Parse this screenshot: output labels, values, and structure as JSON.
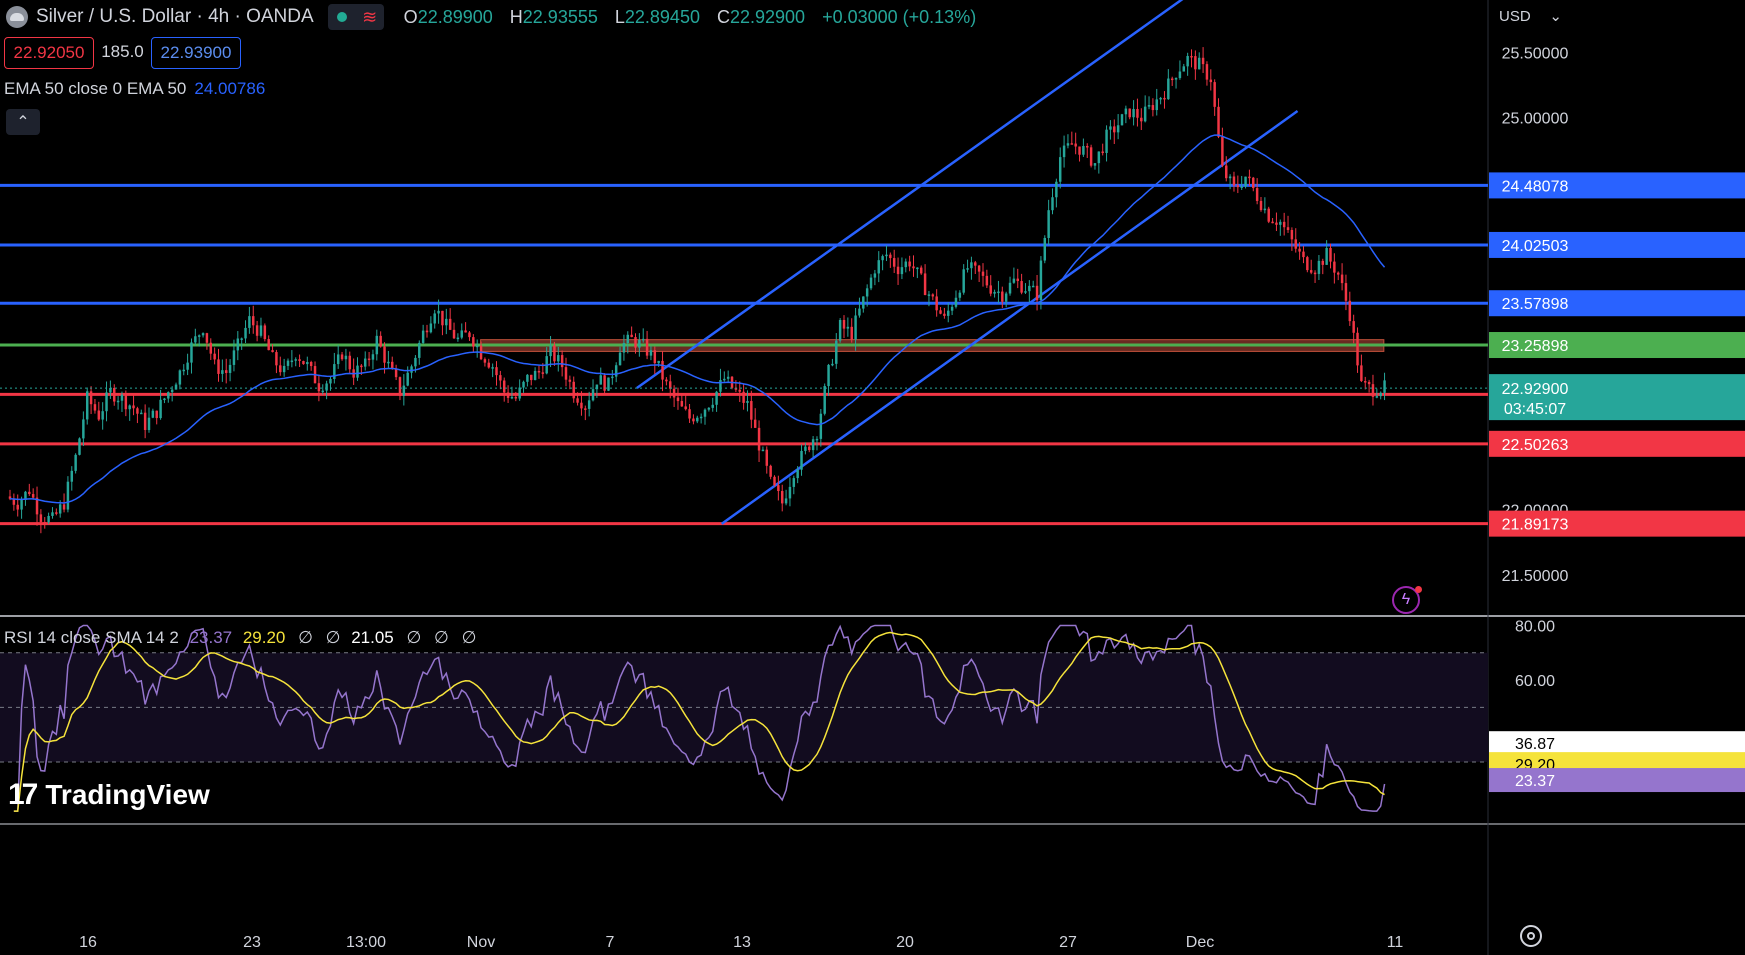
{
  "header": {
    "title": "Silver / U.S. Dollar · 4h · OANDA",
    "ohlc": {
      "o_label": "O",
      "o": "22.89900",
      "h_label": "H",
      "h": "22.93555",
      "l_label": "L",
      "l": "22.89450",
      "c_label": "C",
      "c": "22.92900",
      "change": "+0.03000 (+0.13%)"
    },
    "sell_price": "22.92050",
    "spread": "185.0",
    "buy_price": "22.93900",
    "icons": {
      "symbol": "silver-coin-icon",
      "market_status": "market-open-dot-icon",
      "data_flow": "wave-icon",
      "collapse": "chevron-up-icon"
    }
  },
  "currency": "USD",
  "ema_legend": {
    "label": "EMA 50 close 0 EMA 50",
    "value": "24.00786"
  },
  "rsi_legend": {
    "label": "RSI 14 close SMA 14 2",
    "rsi": "23.37",
    "sma": "29.20",
    "e1": "∅",
    "e2": "∅",
    "bb": "21.05",
    "e3": "∅",
    "e4": "∅",
    "e5": "∅"
  },
  "branding": "TradingView",
  "colors": {
    "up": "#26a69a",
    "down": "#f23645",
    "resistance": "#2962ff",
    "support": "#f23645",
    "pivot": "#4caf50",
    "ema": "#2962ff",
    "rsi": "#9575cd",
    "rsi_sma": "#f5e33b",
    "zone": "#8b3a2e"
  },
  "chart_data": [
    {
      "type": "candlestick",
      "title": "Silver / U.S. Dollar · 4h · OANDA",
      "ylim": [
        21.2,
        25.9
      ],
      "y_ticks": [
        "25.50000",
        "25.00000",
        "22.00000",
        "21.50000"
      ],
      "x_ticks": [
        "16",
        "23",
        "13:00",
        "Nov",
        "7",
        "13",
        "20",
        "27",
        "Dec",
        "11"
      ],
      "close_path": [
        22.1,
        22.05,
        22.15,
        21.95,
        21.92,
        22.05,
        22.4,
        22.85,
        22.72,
        22.9,
        22.85,
        22.78,
        22.65,
        22.75,
        22.9,
        23.05,
        23.25,
        23.4,
        23.1,
        23.05,
        23.25,
        23.45,
        23.35,
        23.15,
        23.05,
        23.2,
        23.1,
        22.95,
        23.0,
        23.2,
        23.05,
        23.1,
        23.3,
        23.1,
        22.9,
        23.1,
        23.35,
        23.55,
        23.4,
        23.3,
        23.35,
        23.2,
        23.1,
        22.9,
        22.85,
        23.0,
        23.05,
        23.2,
        23.1,
        22.9,
        22.8,
        23.0,
        22.95,
        23.25,
        23.3,
        23.25,
        23.15,
        22.95,
        22.8,
        22.7,
        22.75,
        22.85,
        23.0,
        22.9,
        22.8,
        22.5,
        22.2,
        22.05,
        22.3,
        22.45,
        22.6,
        23.05,
        23.4,
        23.35,
        23.6,
        23.85,
        23.95,
        23.85,
        23.9,
        23.75,
        23.6,
        23.45,
        23.65,
        23.85,
        23.8,
        23.7,
        23.65,
        23.75,
        23.7,
        23.65,
        24.3,
        24.7,
        24.8,
        24.75,
        24.65,
        24.85,
        24.95,
        25.05,
        25.0,
        25.1,
        25.2,
        25.35,
        25.45,
        25.4,
        25.3,
        24.6,
        24.45,
        24.55,
        24.4,
        24.25,
        24.2,
        24.05,
        23.9,
        23.85,
        23.95,
        23.8,
        23.5,
        22.95,
        22.92,
        22.93
      ],
      "horizontal_levels": [
        {
          "value": 24.48078,
          "label": "24.48078",
          "kind": "resistance"
        },
        {
          "value": 24.02503,
          "label": "24.02503",
          "kind": "resistance"
        },
        {
          "value": 23.57898,
          "label": "23.57898",
          "kind": "resistance"
        },
        {
          "value": 23.25898,
          "label": "23.25898",
          "kind": "pivot"
        },
        {
          "value": 22.88081,
          "label": "22.88081",
          "kind": "support"
        },
        {
          "value": 22.50263,
          "label": "22.50263",
          "kind": "support"
        },
        {
          "value": 21.89173,
          "label": "21.89173",
          "kind": "support"
        }
      ],
      "ema50": {
        "value": 24.00786,
        "label": "24.00786"
      },
      "last_price": {
        "value": 22.929,
        "label": "22.92900",
        "countdown": "03:45:07"
      },
      "channel_upper": [
        [
          0.428,
          22.93
        ],
        [
          0.8,
          25.95
        ]
      ],
      "channel_lower": [
        [
          0.485,
          21.89
        ],
        [
          0.872,
          25.05
        ]
      ],
      "zone": {
        "from": 0.323,
        "to": 0.93,
        "low": 23.21,
        "high": 23.3
      }
    },
    {
      "type": "line",
      "title": "RSI 14 close SMA 14 2",
      "ylim": [
        8,
        82
      ],
      "y_ticks": [
        "80.00",
        "60.00"
      ],
      "levels": [
        70,
        50,
        30
      ],
      "rsi": {
        "value": 23.37,
        "label": "23.37"
      },
      "sma": {
        "value": 29.2,
        "label": "29.20"
      },
      "upper_band": {
        "value": 36.87,
        "label": "36.87"
      },
      "lower_band": {
        "value": 21.05,
        "label": "21.05"
      }
    }
  ]
}
